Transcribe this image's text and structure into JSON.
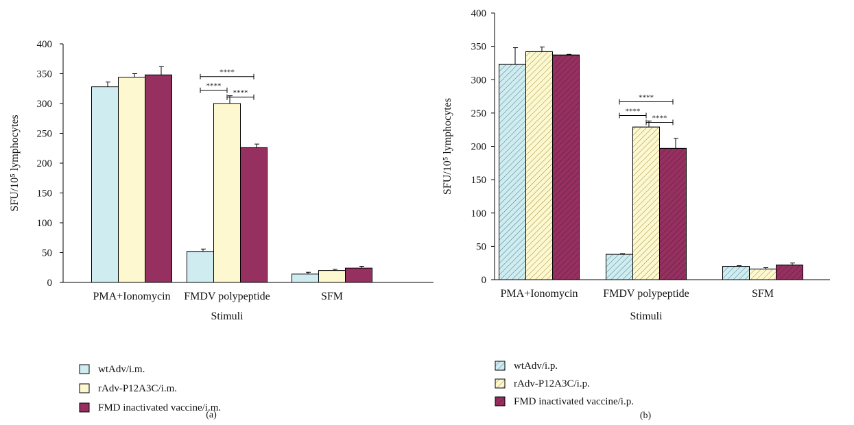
{
  "figure": {
    "colors": {
      "wtAdv": "#cfecf1",
      "rAdv": "#fdf8cf",
      "FMD": "#963060",
      "axis": "#000000"
    },
    "panels": [
      {
        "panel_label": "(a)",
        "hatched": false,
        "chart_data": {
          "type": "bar",
          "title": "",
          "xlabel": "Stimuli",
          "ylabel": "SFU/10⁵ lymphocytes",
          "ylim": [
            0,
            400
          ],
          "yticks": [
            0,
            50,
            100,
            150,
            200,
            250,
            300,
            350,
            400
          ],
          "categories": [
            "PMA+Ionomycin",
            "FMDV polypeptide",
            "SFM"
          ],
          "series": [
            {
              "name": "wtAdv/i.m.",
              "color": "#cfecf1",
              "values": [
                328,
                52,
                14
              ],
              "errors": [
                8,
                4,
                3
              ]
            },
            {
              "name": "rAdv-P12A3C/i.m.",
              "color": "#fdf8cf",
              "values": [
                344,
                300,
                20
              ],
              "errors": [
                6,
                13,
                2
              ]
            },
            {
              "name": "FMD inactivated vaccine/i.m.",
              "color": "#963060",
              "values": [
                348,
                226,
                24
              ],
              "errors": [
                14,
                6,
                3
              ]
            }
          ],
          "significance": [
            {
              "category": "FMDV polypeptide",
              "from_series": 0,
              "to_series": 1,
              "label": "****",
              "level": 1
            },
            {
              "category": "FMDV polypeptide",
              "from_series": 1,
              "to_series": 2,
              "label": "****",
              "level": 1
            },
            {
              "category": "FMDV polypeptide",
              "from_series": 0,
              "to_series": 2,
              "label": "****",
              "level": 2
            }
          ],
          "legend_position": "below"
        }
      },
      {
        "panel_label": "(b)",
        "hatched": true,
        "chart_data": {
          "type": "bar",
          "title": "",
          "xlabel": "Stimuli",
          "ylabel": "SFU/10⁵ lymphocytes",
          "ylim": [
            0,
            400
          ],
          "yticks": [
            0,
            50,
            100,
            150,
            200,
            250,
            300,
            350,
            400
          ],
          "categories": [
            "PMA+Ionomycin",
            "FMDV polypeptide",
            "SFM"
          ],
          "series": [
            {
              "name": "wtAdv/i.p.",
              "color": "#cfecf1",
              "values": [
                323,
                38,
                20
              ],
              "errors": [
                25,
                1,
                1
              ]
            },
            {
              "name": "rAdv-P12A3C/i.p.",
              "color": "#fdf8cf",
              "values": [
                342,
                229,
                16
              ],
              "errors": [
                7,
                9,
                2
              ]
            },
            {
              "name": "FMD inactivated vaccine/i.p.",
              "color": "#963060",
              "values": [
                337,
                197,
                22
              ],
              "errors": [
                1,
                15,
                3
              ]
            }
          ],
          "significance": [
            {
              "category": "FMDV polypeptide",
              "from_series": 0,
              "to_series": 1,
              "label": "****",
              "level": 1
            },
            {
              "category": "FMDV polypeptide",
              "from_series": 1,
              "to_series": 2,
              "label": "****",
              "level": 1
            },
            {
              "category": "FMDV polypeptide",
              "from_series": 0,
              "to_series": 2,
              "label": "****",
              "level": 2
            }
          ],
          "legend_position": "below"
        }
      }
    ]
  }
}
